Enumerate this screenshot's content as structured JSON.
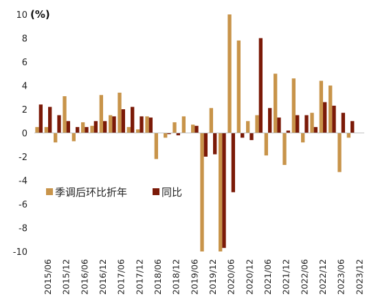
{
  "chart_data": {
    "type": "bar",
    "unit_label": "(%)",
    "ylim": [
      -10,
      10
    ],
    "y_ticks": [
      -10,
      -8,
      -6,
      -4,
      -2,
      0,
      2,
      4,
      6,
      8,
      10
    ],
    "grid": false,
    "legend_position": "bottom-left",
    "x_tick_labels": [
      "2015/06",
      "2015/12",
      "2016/06",
      "2016/12",
      "2017/06",
      "2017/12",
      "2018/06",
      "2018/12",
      "2019/06",
      "2019/12",
      "2020/06",
      "2020/12",
      "2021/06",
      "2021/12",
      "2022/06",
      "2022/12",
      "2023/06",
      "2023/12"
    ],
    "categories": [
      "2015/03",
      "2015/06",
      "2015/09",
      "2015/12",
      "2016/03",
      "2016/06",
      "2016/09",
      "2016/12",
      "2017/03",
      "2017/06",
      "2017/09",
      "2017/12",
      "2018/03",
      "2018/06",
      "2018/09",
      "2018/12",
      "2019/03",
      "2019/06",
      "2019/09",
      "2019/12",
      "2020/03",
      "2020/06",
      "2020/09",
      "2020/12",
      "2021/03",
      "2021/06",
      "2021/09",
      "2021/12",
      "2022/03",
      "2022/06",
      "2022/09",
      "2022/12",
      "2023/03",
      "2023/06",
      "2023/09",
      "2023/12"
    ],
    "series": [
      {
        "name": "季调后环比折年",
        "color": "#C8944A",
        "values": [
          0.5,
          0.5,
          -0.8,
          3.1,
          -0.7,
          0.9,
          0.6,
          3.2,
          1.5,
          3.4,
          0.5,
          0.3,
          1.4,
          -2.2,
          -0.4,
          0.9,
          1.4,
          0.7,
          -10.0,
          2.1,
          -10.0,
          10.0,
          7.8,
          1.0,
          1.5,
          -1.9,
          5.0,
          -2.7,
          4.6,
          -0.8,
          1.7,
          4.4,
          4.0,
          -3.3,
          -0.4,
          null
        ]
      },
      {
        "name": "同比",
        "color": "#7B1A08",
        "values": [
          2.4,
          2.2,
          1.5,
          1.0,
          0.5,
          0.5,
          1.0,
          1.0,
          1.4,
          2.0,
          2.2,
          1.4,
          1.3,
          null,
          -0.1,
          -0.2,
          null,
          0.6,
          -2.0,
          -1.8,
          -9.7,
          -5.0,
          -0.4,
          -0.6,
          8.0,
          2.1,
          1.3,
          0.2,
          1.5,
          1.5,
          0.5,
          2.6,
          2.3,
          1.7,
          1.0,
          null
        ]
      }
    ]
  }
}
